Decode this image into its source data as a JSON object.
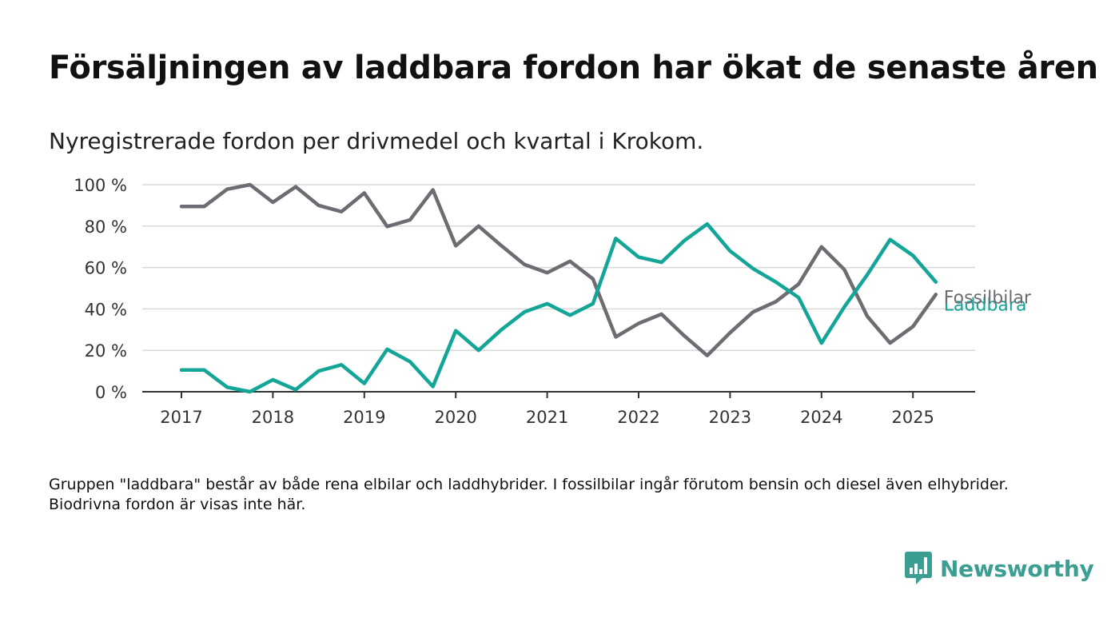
{
  "title": "Försäljningen av laddbara fordon har ökat de senaste åren",
  "subtitle": "Nyregistrerade fordon per drivmedel och kvartal i Krokom.",
  "footnote": "Gruppen \"laddbara\" består av både rena elbilar och laddhybrider. I fossilbilar ingår förutom bensin och diesel även elhybrider. Biodrivna fordon är visas inte här.",
  "brand": {
    "name": "Newsworthy",
    "icon": "newsworthy-logo-icon",
    "color": "#3a9e92"
  },
  "chart_data": {
    "type": "line",
    "title": "Försäljningen av laddbara fordon har ökat de senaste åren",
    "subtitle": "Nyregistrerade fordon per drivmedel och kvartal i Krokom.",
    "x_tick_labels": [
      "2017",
      "2018",
      "2019",
      "2020",
      "2021",
      "2022",
      "2023",
      "2024",
      "2025"
    ],
    "y_tick_labels": [
      "0 %",
      "20 %",
      "40 %",
      "60 %",
      "80 %",
      "100 %"
    ],
    "y_ticks": [
      0,
      20,
      40,
      60,
      80,
      100
    ],
    "ylim": [
      0,
      100
    ],
    "xlim": [
      2016.6,
      2025.7
    ],
    "grid": true,
    "x": [
      2017,
      2017.25,
      2017.5,
      2017.75,
      2018,
      2018.25,
      2018.5,
      2018.75,
      2019,
      2019.25,
      2019.5,
      2019.75,
      2020,
      2020.25,
      2020.5,
      2020.75,
      2021,
      2021.25,
      2021.5,
      2021.75,
      2022,
      2022.25,
      2022.5,
      2022.75,
      2023,
      2023.25,
      2023.5,
      2023.75,
      2024,
      2024.25,
      2024.5,
      2024.75,
      2025,
      2025.25
    ],
    "series": [
      {
        "name": "Fossilbilar",
        "color": "#6d6c72",
        "values": [
          89.5,
          89.5,
          97.8,
          100,
          91.5,
          99,
          90,
          87,
          96,
          79.8,
          83,
          97.5,
          70.5,
          80,
          70.5,
          61.5,
          57.5,
          63,
          54.5,
          26.5,
          33,
          37.5,
          27,
          17.5,
          28.5,
          38.5,
          43.5,
          52,
          70,
          59,
          36.5,
          23.5,
          31.5,
          47
        ]
      },
      {
        "name": "Laddbara",
        "color": "#13a598",
        "values": [
          10.5,
          10.5,
          2.2,
          0,
          5.8,
          1,
          10,
          13,
          4,
          20.5,
          14.5,
          2.5,
          29.5,
          20,
          30,
          38.5,
          42.5,
          37,
          42.5,
          74,
          65,
          62.5,
          73,
          81,
          68,
          59.5,
          53,
          45.5,
          23.5,
          41,
          56.5,
          73.5,
          65.8,
          53
        ]
      }
    ]
  }
}
